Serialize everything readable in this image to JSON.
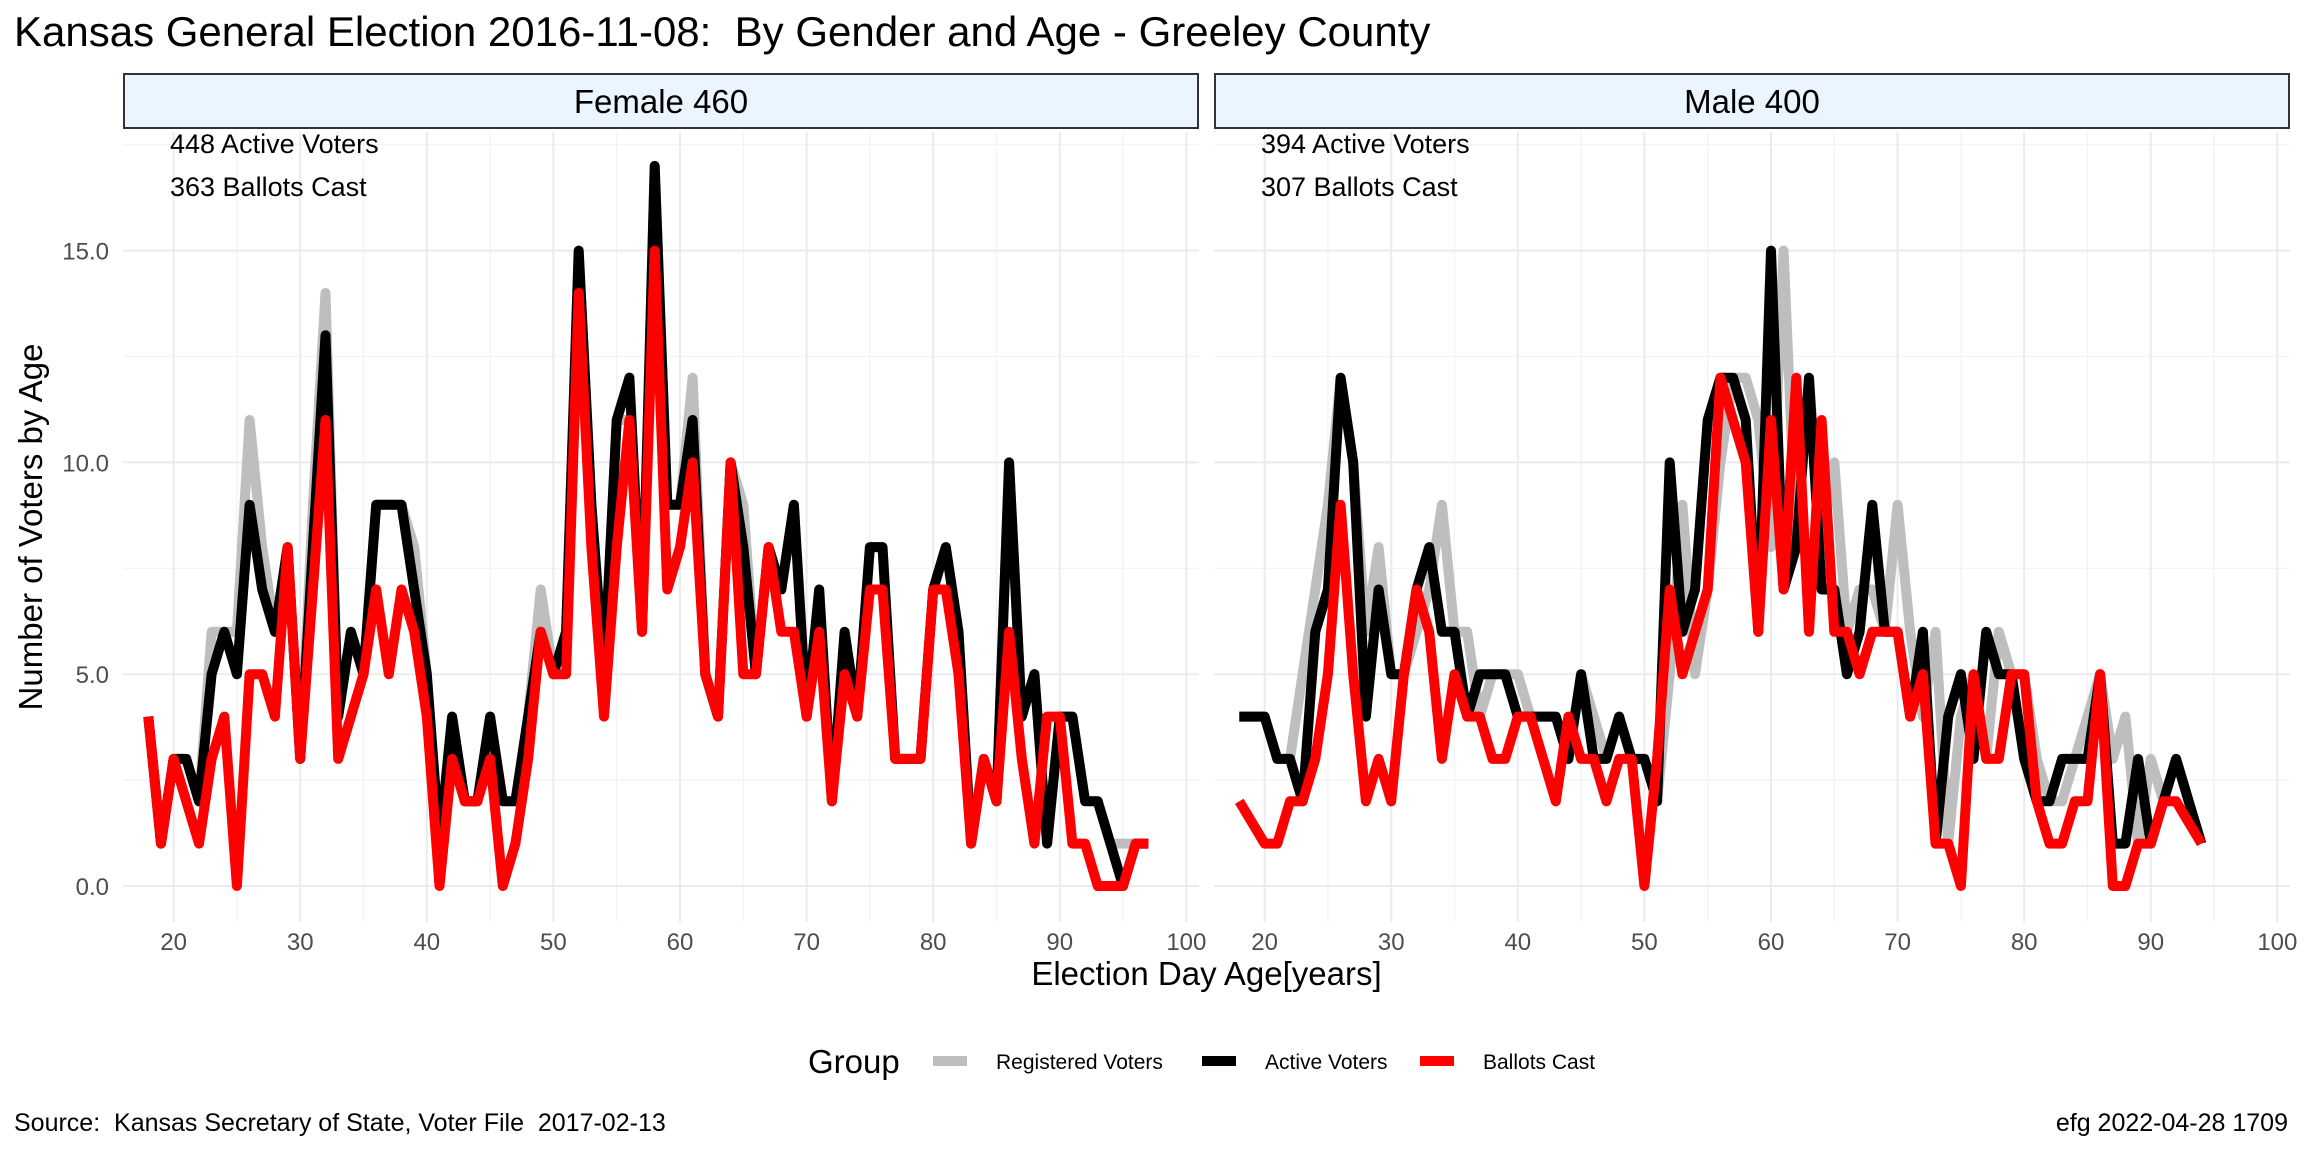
{
  "title": "Kansas General Election 2016-11-08:  By Gender and Age - Greeley County",
  "source_caption": "Source:  Kansas Secretary of State, Voter File  2017-02-13",
  "credit_caption": "efg 2022-04-28 1709",
  "colors": {
    "registered": "#bebebe",
    "active": "#000000",
    "ballots": "#ff0000",
    "strip_fill": "#eaf5ff"
  },
  "chart_data": {
    "type": "line",
    "xlabel": "Election Day Age[years]",
    "ylabel": "Number of Voters by Age",
    "xlim": [
      16,
      101
    ],
    "ylim": [
      -0.85,
      17.8
    ],
    "x_ticks": [
      20,
      30,
      40,
      50,
      60,
      70,
      80,
      90,
      100
    ],
    "y_ticks": [
      0,
      5,
      10,
      15
    ],
    "y_tick_labels": [
      "0.0",
      "5.0",
      "10.0",
      "15.0"
    ],
    "grid": true,
    "legend": {
      "position": "bottom",
      "title": "Group",
      "entries": [
        "Registered Voters",
        "Active Voters",
        "Ballots Cast"
      ]
    },
    "panels": [
      {
        "strip": "Female 460",
        "annotations": [
          "448 Active Voters",
          "363 Ballots Cast"
        ],
        "series": [
          {
            "name": "Registered Voters",
            "x": [
              18,
              19,
              20,
              21,
              22,
              23,
              24,
              25,
              26,
              27,
              28,
              29,
              30,
              31,
              32,
              33,
              34,
              35,
              36,
              37,
              38,
              39,
              40,
              41,
              42,
              43,
              44,
              45,
              46,
              47,
              48,
              49,
              50,
              51,
              52,
              53,
              54,
              55,
              56,
              57,
              58,
              59,
              60,
              61,
              62,
              63,
              64,
              65,
              66,
              67,
              68,
              69,
              70,
              71,
              72,
              73,
              74,
              75,
              76,
              77,
              78,
              79,
              80,
              81,
              82,
              83,
              84,
              85,
              86,
              87,
              88,
              89,
              90,
              91,
              92,
              93,
              94,
              95,
              96,
              97
            ],
            "y": [
              4,
              1,
              3,
              3,
              2,
              6,
              6,
              6,
              11,
              8,
              6,
              8,
              3,
              9,
              14,
              4,
              6,
              5,
              9,
              9,
              9,
              8,
              5,
              1,
              4,
              2,
              2,
              4,
              2,
              2,
              4,
              7,
              5,
              6,
              15,
              9,
              5,
              11,
              11,
              6,
              17,
              9,
              9,
              12,
              5,
              4,
              10,
              9,
              5,
              8,
              7,
              9,
              4,
              7,
              2,
              6,
              4,
              8,
              8,
              3,
              3,
              3,
              7,
              8,
              6,
              1,
              3,
              2,
              10,
              4,
              5,
              1,
              4,
              4,
              2,
              2,
              1,
              1,
              1,
              1
            ]
          },
          {
            "name": "Active Voters",
            "x": [
              18,
              19,
              20,
              21,
              22,
              23,
              24,
              25,
              26,
              27,
              28,
              29,
              30,
              31,
              32,
              33,
              34,
              35,
              36,
              37,
              38,
              39,
              40,
              41,
              42,
              43,
              44,
              45,
              46,
              47,
              48,
              49,
              50,
              51,
              52,
              53,
              54,
              55,
              56,
              57,
              58,
              59,
              60,
              61,
              62,
              63,
              64,
              65,
              66,
              67,
              68,
              69,
              70,
              71,
              72,
              73,
              74,
              75,
              76,
              77,
              78,
              79,
              80,
              81,
              82,
              83,
              84,
              85,
              86,
              87,
              88,
              89,
              90,
              91,
              92,
              93,
              94,
              95,
              96,
              97
            ],
            "y": [
              4,
              1,
              3,
              3,
              2,
              5,
              6,
              5,
              9,
              7,
              6,
              8,
              3,
              8,
              13,
              4,
              6,
              5,
              9,
              9,
              9,
              7,
              5,
              1,
              4,
              2,
              2,
              4,
              2,
              2,
              4,
              6,
              5,
              6,
              15,
              9,
              5,
              11,
              12,
              6,
              17,
              9,
              9,
              11,
              5,
              4,
              10,
              8,
              5,
              8,
              7,
              9,
              4,
              7,
              2,
              6,
              4,
              8,
              8,
              3,
              3,
              3,
              7,
              8,
              6,
              1,
              3,
              2,
              10,
              4,
              5,
              1,
              4,
              4,
              2,
              2,
              1,
              0,
              1,
              1
            ]
          },
          {
            "name": "Ballots Cast",
            "x": [
              18,
              19,
              20,
              21,
              22,
              23,
              24,
              25,
              26,
              27,
              28,
              29,
              30,
              31,
              32,
              33,
              34,
              35,
              36,
              37,
              38,
              39,
              40,
              41,
              42,
              43,
              44,
              45,
              46,
              47,
              48,
              49,
              50,
              51,
              52,
              53,
              54,
              55,
              56,
              57,
              58,
              59,
              60,
              61,
              62,
              63,
              64,
              65,
              66,
              67,
              68,
              69,
              70,
              71,
              72,
              73,
              74,
              75,
              76,
              77,
              78,
              79,
              80,
              81,
              82,
              83,
              84,
              85,
              86,
              87,
              88,
              89,
              90,
              91,
              92,
              93,
              94,
              95,
              96,
              97
            ],
            "y": [
              4,
              1,
              3,
              2,
              1,
              3,
              4,
              0,
              5,
              5,
              4,
              8,
              3,
              7,
              11,
              3,
              4,
              5,
              7,
              5,
              7,
              6,
              4,
              0,
              3,
              2,
              2,
              3,
              0,
              1,
              3,
              6,
              5,
              5,
              14,
              8,
              4,
              8,
              11,
              6,
              15,
              7,
              8,
              10,
              5,
              4,
              10,
              5,
              5,
              8,
              6,
              6,
              4,
              6,
              2,
              5,
              4,
              7,
              7,
              3,
              3,
              3,
              7,
              7,
              5,
              1,
              3,
              2,
              6,
              3,
              1,
              4,
              4,
              1,
              1,
              0,
              0,
              0,
              1,
              1
            ]
          }
        ]
      },
      {
        "strip": "Male 400",
        "annotations": [
          "394 Active Voters",
          "307 Ballots Cast"
        ],
        "series": [
          {
            "name": "Registered Voters",
            "x": [
              18,
              19,
              20,
              21,
              22,
              23,
              24,
              25,
              26,
              27,
              28,
              29,
              30,
              31,
              32,
              33,
              34,
              35,
              36,
              37,
              38,
              39,
              40,
              41,
              42,
              43,
              44,
              45,
              46,
              47,
              48,
              49,
              50,
              51,
              52,
              53,
              54,
              55,
              56,
              57,
              58,
              59,
              60,
              61,
              62,
              63,
              64,
              65,
              66,
              67,
              68,
              69,
              70,
              71,
              72,
              73,
              74,
              75,
              76,
              77,
              78,
              79,
              80,
              81,
              82,
              83,
              84,
              85,
              86,
              87,
              88,
              89,
              90,
              91,
              92,
              93,
              94
            ],
            "y": [
              4,
              4,
              4,
              3,
              3,
              5,
              7,
              9,
              12,
              10,
              6,
              8,
              5,
              5,
              6,
              7,
              9,
              6,
              6,
              4,
              5,
              5,
              5,
              4,
              4,
              4,
              3,
              5,
              4,
              3,
              4,
              3,
              3,
              2,
              5,
              9,
              5,
              7,
              10,
              12,
              12,
              11,
              8,
              15,
              8,
              12,
              8,
              10,
              6,
              7,
              7,
              6,
              9,
              6,
              4,
              6,
              1,
              4,
              5,
              3,
              6,
              5,
              5,
              3,
              2,
              2,
              3,
              4,
              5,
              3,
              4,
              1,
              3,
              2,
              3,
              2,
              1
            ]
          },
          {
            "name": "Active Voters",
            "x": [
              18,
              19,
              20,
              21,
              22,
              23,
              24,
              25,
              26,
              27,
              28,
              29,
              30,
              31,
              32,
              33,
              34,
              35,
              36,
              37,
              38,
              39,
              40,
              41,
              42,
              43,
              44,
              45,
              46,
              47,
              48,
              49,
              50,
              51,
              52,
              53,
              54,
              55,
              56,
              57,
              58,
              59,
              60,
              61,
              62,
              63,
              64,
              65,
              66,
              67,
              68,
              69,
              70,
              71,
              72,
              73,
              74,
              75,
              76,
              77,
              78,
              79,
              80,
              81,
              82,
              83,
              84,
              85,
              86,
              87,
              88,
              89,
              90,
              91,
              92,
              93,
              94
            ],
            "y": [
              4,
              4,
              4,
              3,
              3,
              2,
              6,
              7,
              12,
              10,
              4,
              7,
              5,
              5,
              7,
              8,
              6,
              6,
              4,
              5,
              5,
              5,
              4,
              4,
              4,
              4,
              3,
              5,
              3,
              3,
              4,
              3,
              3,
              2,
              10,
              6,
              7,
              11,
              12,
              12,
              11,
              6,
              15,
              7,
              8,
              12,
              7,
              7,
              5,
              6,
              9,
              6,
              6,
              4,
              6,
              1,
              4,
              5,
              3,
              6,
              5,
              5,
              3,
              2,
              2,
              3,
              3,
              3,
              5,
              1,
              1,
              3,
              1,
              2,
              3,
              2,
              1
            ]
          },
          {
            "name": "Ballots Cast",
            "x": [
              18,
              19,
              20,
              21,
              22,
              23,
              24,
              25,
              26,
              27,
              28,
              29,
              30,
              31,
              32,
              33,
              34,
              35,
              36,
              37,
              38,
              39,
              40,
              41,
              42,
              43,
              44,
              45,
              46,
              47,
              48,
              49,
              50,
              51,
              52,
              53,
              54,
              55,
              56,
              57,
              58,
              59,
              60,
              61,
              62,
              63,
              64,
              65,
              66,
              67,
              68,
              69,
              70,
              71,
              72,
              73,
              74,
              75,
              76,
              77,
              78,
              79,
              80,
              81,
              82,
              83,
              84,
              85,
              86,
              87,
              88,
              89,
              90,
              91,
              92,
              93,
              94
            ],
            "y": [
              2,
              1.5,
              1,
              1,
              2,
              2,
              3,
              5,
              9,
              5,
              2,
              3,
              2,
              5,
              7,
              6,
              3,
              5,
              4,
              4,
              3,
              3,
              4,
              4,
              3,
              2,
              4,
              3,
              3,
              2,
              3,
              3,
              0,
              3,
              7,
              5,
              6,
              7,
              12,
              11,
              10,
              6,
              11,
              7,
              12,
              6,
              11,
              6,
              6,
              5,
              6,
              6,
              6,
              4,
              5,
              1,
              1,
              0,
              5,
              3,
              3,
              5,
              5,
              2,
              1,
              1,
              2,
              2,
              5,
              0,
              0,
              1,
              1,
              2,
              2,
              1.5,
              1
            ]
          }
        ]
      }
    ]
  }
}
